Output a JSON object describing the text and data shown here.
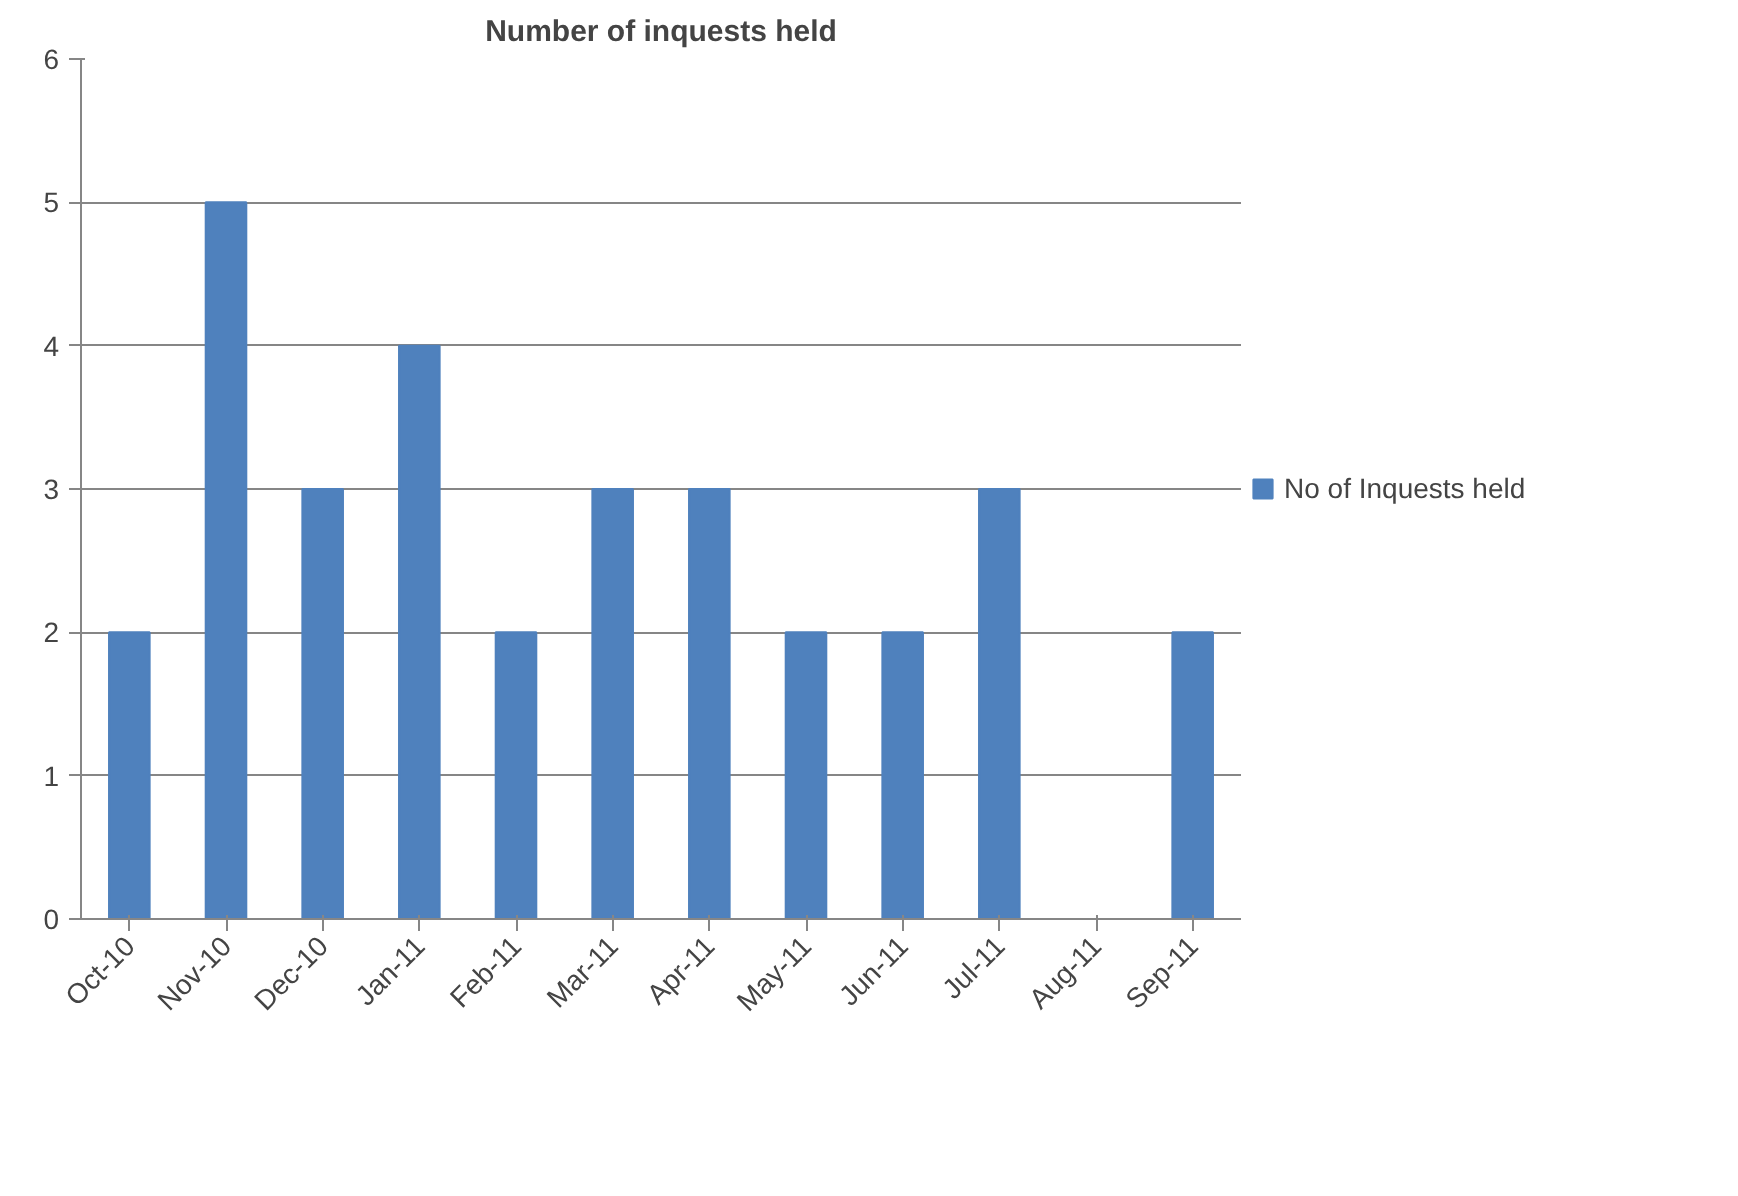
{
  "chart_data": {
    "type": "bar",
    "title": "Number of inquests held",
    "categories": [
      "Oct-10",
      "Nov-10",
      "Dec-10",
      "Jan-11",
      "Feb-11",
      "Mar-11",
      "Apr-11",
      "May-11",
      "Jun-11",
      "Jul-11",
      "Aug-11",
      "Sep-11"
    ],
    "series": [
      {
        "name": "No of Inquests held",
        "color": "#4f81bd",
        "values": [
          2,
          5,
          3,
          4,
          2,
          3,
          3,
          2,
          2,
          3,
          0,
          2
        ]
      }
    ],
    "ylim": [
      0,
      6
    ],
    "yticks": [
      0,
      1,
      2,
      3,
      4,
      5,
      6
    ],
    "grid": "y",
    "legend": "right"
  }
}
